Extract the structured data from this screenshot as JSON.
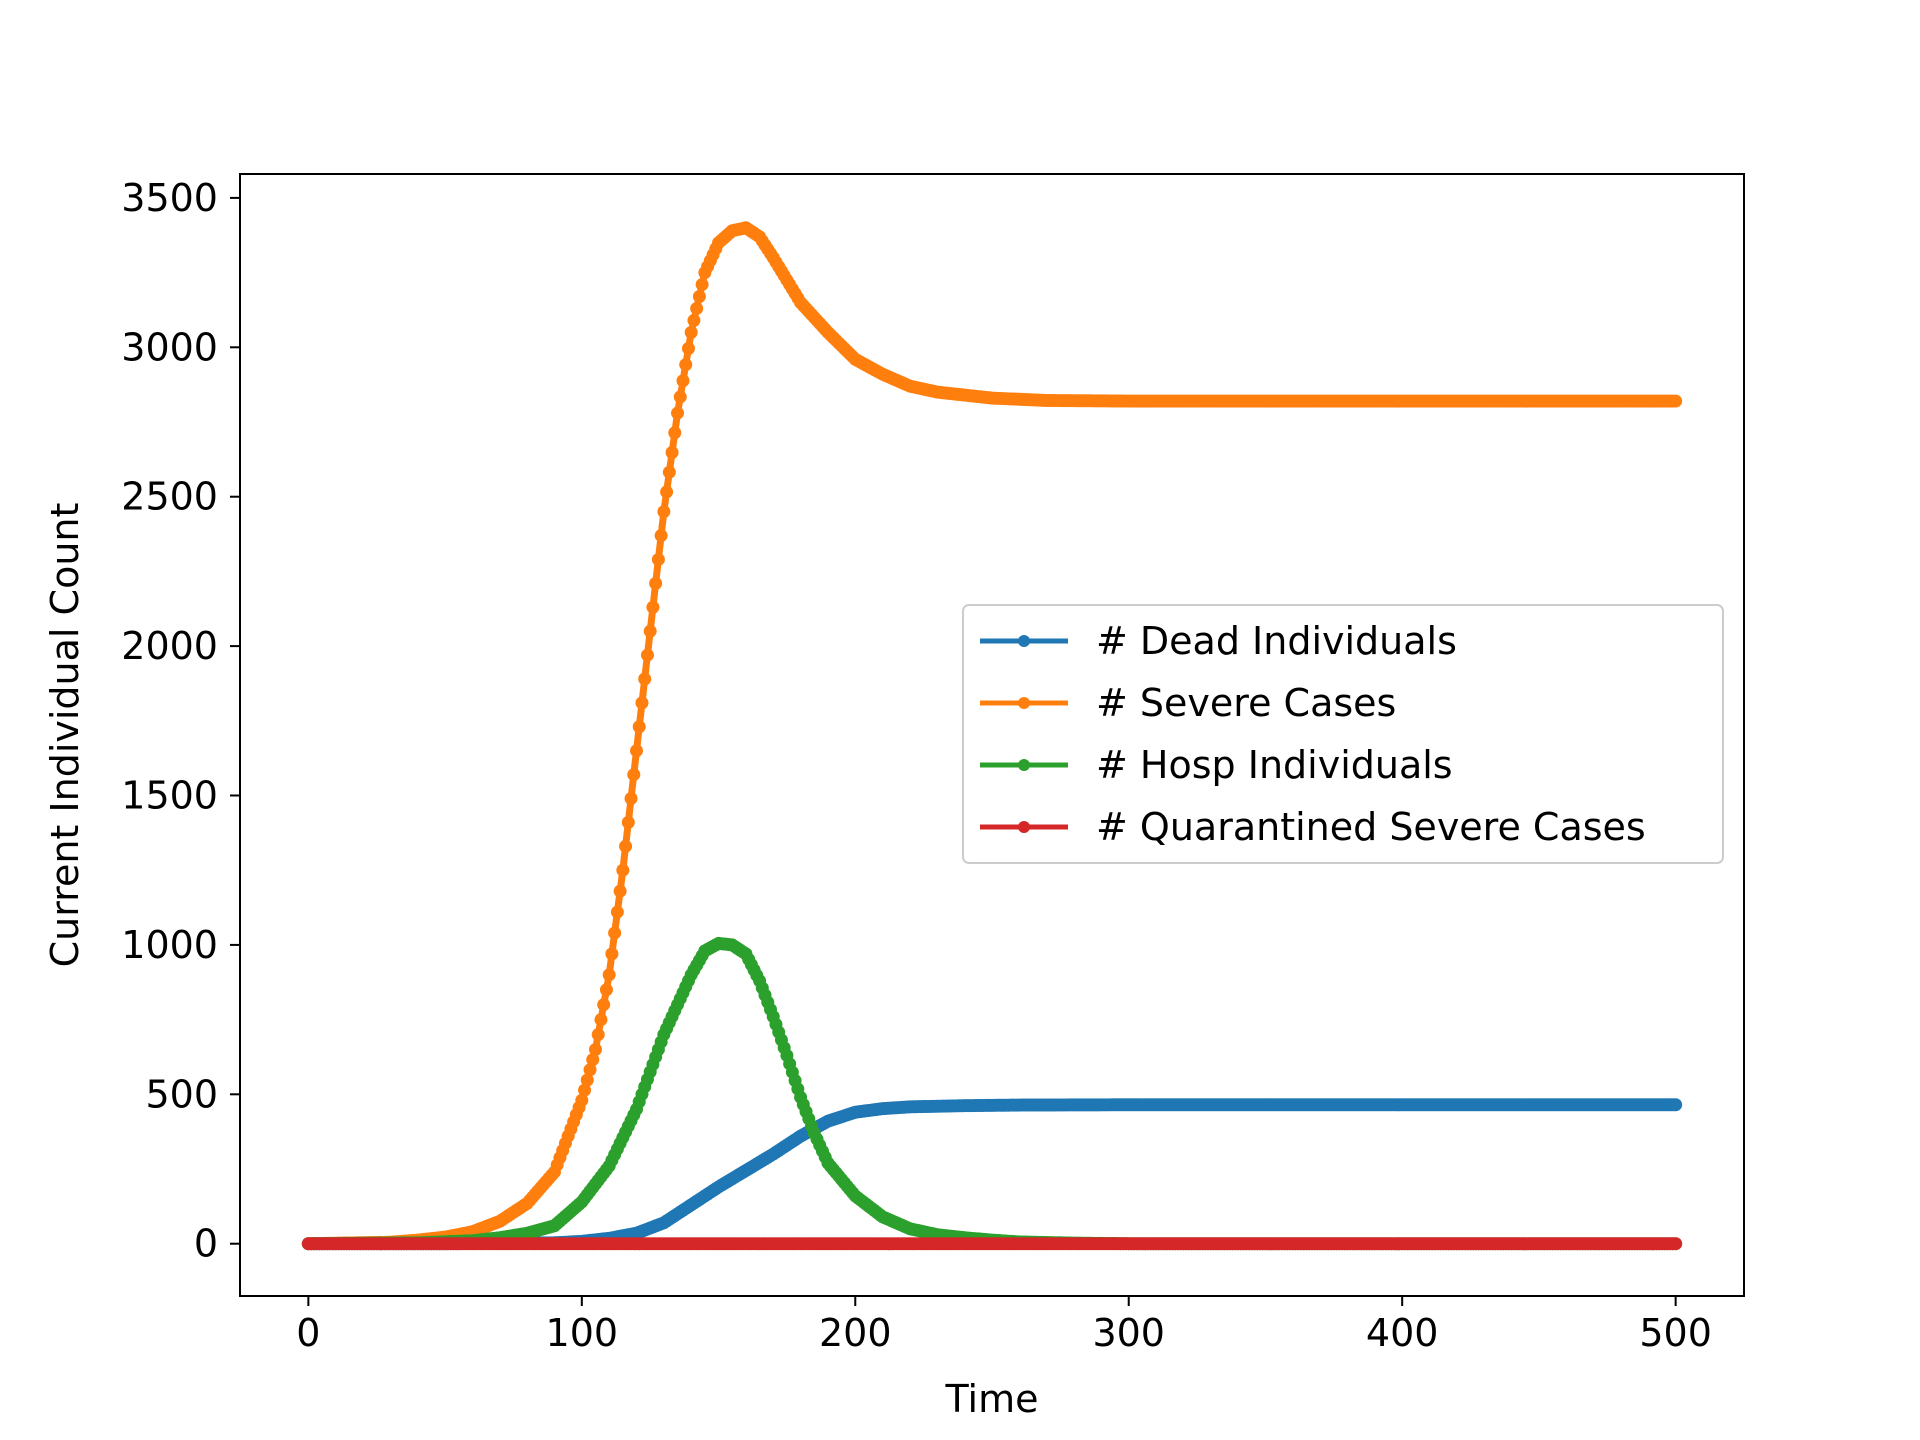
{
  "chart_data": {
    "type": "line",
    "title": "",
    "xlabel": "Time",
    "ylabel": "Current Individual Count",
    "xlim": [
      -25,
      525
    ],
    "ylim": [
      -175,
      3580
    ],
    "x_ticks": [
      0,
      100,
      200,
      300,
      400,
      500
    ],
    "y_ticks": [
      0,
      500,
      1000,
      1500,
      2000,
      2500,
      3000,
      3500
    ],
    "x_tick_labels": [
      "0",
      "100",
      "200",
      "300",
      "400",
      "500"
    ],
    "y_tick_labels": [
      "0",
      "500",
      "1000",
      "1500",
      "2000",
      "2500",
      "3000",
      "3500"
    ],
    "grid": false,
    "legend_position": "center-right",
    "series": [
      {
        "name": "# Dead Individuals",
        "color": "#1f77b4",
        "points": [
          [
            0,
            0
          ],
          [
            50,
            0
          ],
          [
            90,
            3
          ],
          [
            100,
            8
          ],
          [
            110,
            18
          ],
          [
            120,
            35
          ],
          [
            130,
            70
          ],
          [
            140,
            130
          ],
          [
            150,
            190
          ],
          [
            160,
            245
          ],
          [
            170,
            300
          ],
          [
            180,
            360
          ],
          [
            190,
            410
          ],
          [
            200,
            440
          ],
          [
            210,
            452
          ],
          [
            220,
            458
          ],
          [
            240,
            462
          ],
          [
            260,
            464
          ],
          [
            300,
            465
          ],
          [
            400,
            465
          ],
          [
            500,
            465
          ]
        ]
      },
      {
        "name": "# Severe Cases",
        "color": "#ff7f0e",
        "points": [
          [
            0,
            0
          ],
          [
            30,
            5
          ],
          [
            40,
            12
          ],
          [
            50,
            22
          ],
          [
            60,
            40
          ],
          [
            70,
            75
          ],
          [
            80,
            135
          ],
          [
            90,
            240
          ],
          [
            100,
            480
          ],
          [
            105,
            650
          ],
          [
            110,
            900
          ],
          [
            115,
            1250
          ],
          [
            120,
            1650
          ],
          [
            125,
            2050
          ],
          [
            130,
            2450
          ],
          [
            135,
            2780
          ],
          [
            140,
            3050
          ],
          [
            145,
            3250
          ],
          [
            150,
            3350
          ],
          [
            155,
            3390
          ],
          [
            160,
            3400
          ],
          [
            165,
            3370
          ],
          [
            170,
            3300
          ],
          [
            180,
            3150
          ],
          [
            190,
            3050
          ],
          [
            200,
            2960
          ],
          [
            210,
            2910
          ],
          [
            220,
            2870
          ],
          [
            230,
            2850
          ],
          [
            240,
            2840
          ],
          [
            250,
            2830
          ],
          [
            270,
            2822
          ],
          [
            300,
            2820
          ],
          [
            400,
            2820
          ],
          [
            500,
            2820
          ]
        ]
      },
      {
        "name": "# Hosp Individuals",
        "color": "#2ca02c",
        "points": [
          [
            0,
            0
          ],
          [
            40,
            3
          ],
          [
            60,
            10
          ],
          [
            70,
            20
          ],
          [
            80,
            35
          ],
          [
            90,
            60
          ],
          [
            100,
            140
          ],
          [
            110,
            260
          ],
          [
            120,
            450
          ],
          [
            130,
            700
          ],
          [
            140,
            900
          ],
          [
            145,
            980
          ],
          [
            150,
            1005
          ],
          [
            155,
            1000
          ],
          [
            160,
            970
          ],
          [
            165,
            880
          ],
          [
            170,
            760
          ],
          [
            175,
            630
          ],
          [
            180,
            490
          ],
          [
            185,
            370
          ],
          [
            190,
            270
          ],
          [
            200,
            160
          ],
          [
            210,
            90
          ],
          [
            220,
            50
          ],
          [
            230,
            30
          ],
          [
            240,
            20
          ],
          [
            250,
            12
          ],
          [
            260,
            6
          ],
          [
            280,
            2
          ],
          [
            300,
            0
          ],
          [
            400,
            0
          ],
          [
            500,
            0
          ]
        ]
      },
      {
        "name": "# Quarantined Severe Cases",
        "color": "#d62728",
        "points": [
          [
            0,
            0
          ],
          [
            500,
            0
          ]
        ]
      }
    ]
  }
}
